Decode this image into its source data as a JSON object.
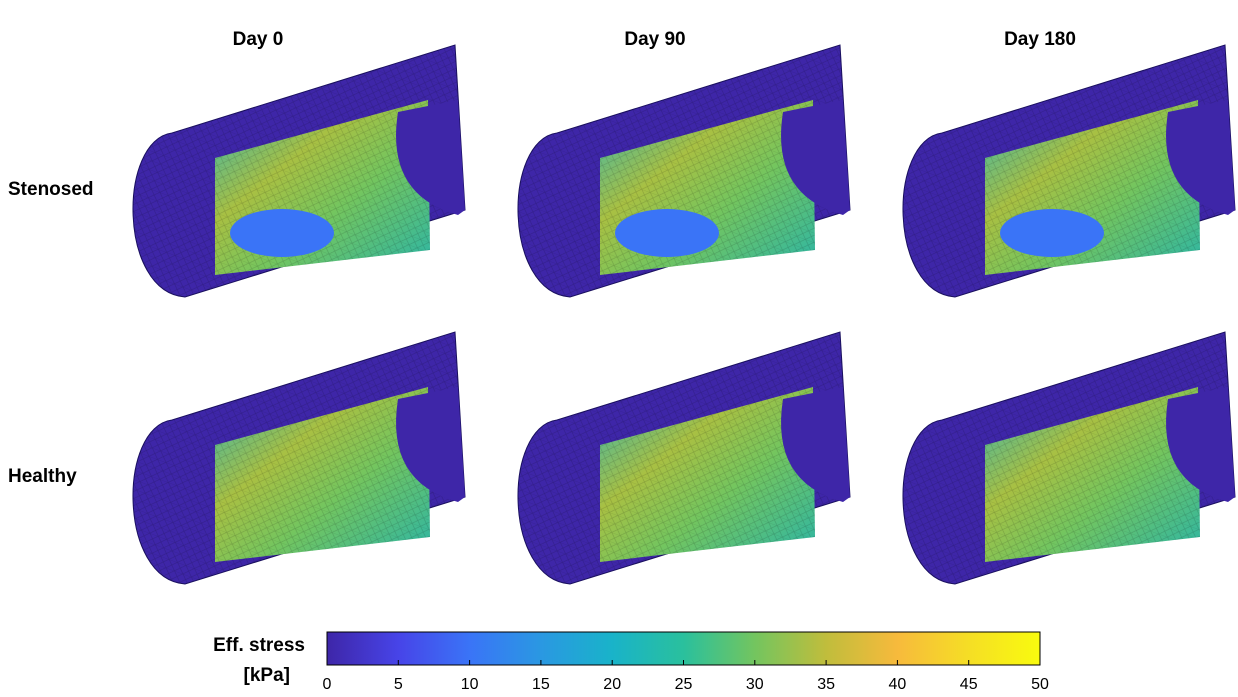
{
  "columns": [
    "Day 0",
    "Day 90",
    "Day 180"
  ],
  "rows": [
    "Stenosed",
    "Healthy"
  ],
  "colorbar": {
    "label": "Eff. stress",
    "unit": "[kPa]",
    "lim": [
      0,
      50
    ],
    "ticks": [
      0,
      5,
      10,
      15,
      20,
      25,
      30,
      35,
      40,
      45,
      50
    ],
    "colors": [
      "#3e26a8",
      "#4744e8",
      "#3a74f7",
      "#2a98e2",
      "#19b3c9",
      "#2ac09d",
      "#73c55f",
      "#c0bd3c",
      "#f7ba3c",
      "#f5de25",
      "#f9fb0e"
    ]
  }
}
